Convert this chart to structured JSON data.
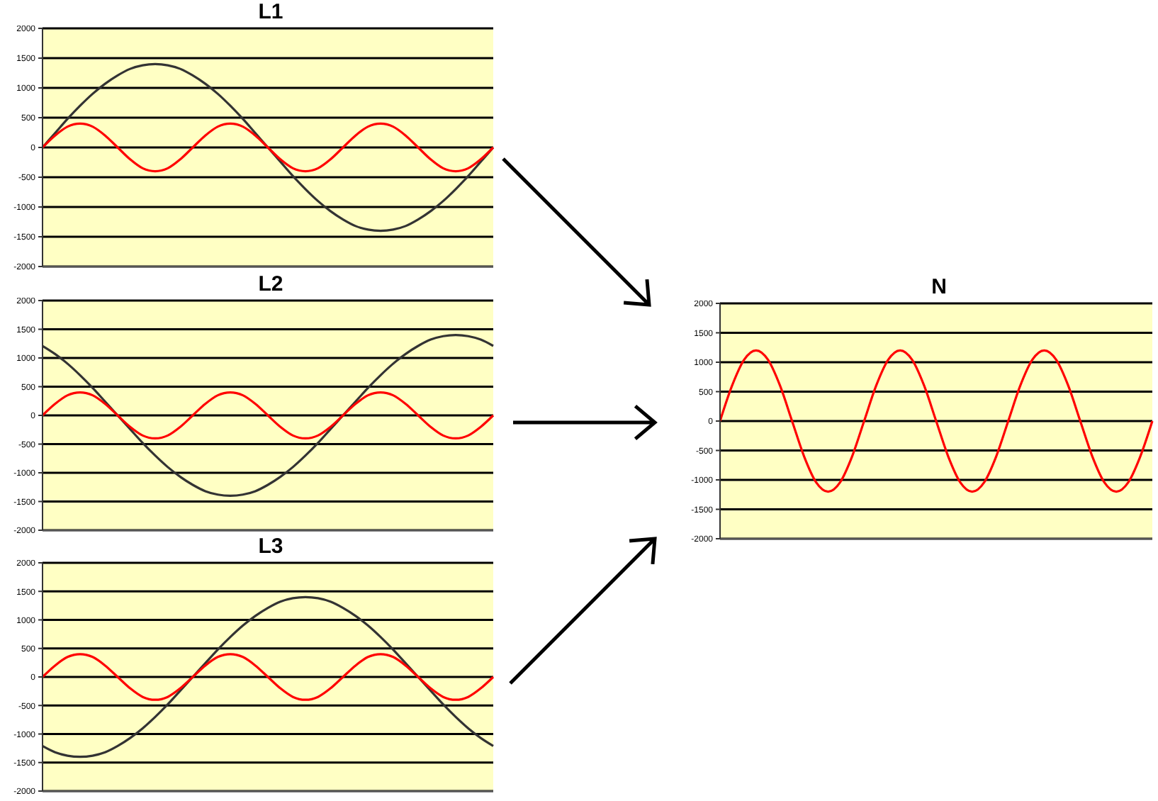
{
  "chart_data": [
    {
      "type": "line",
      "title": "L1",
      "categories": [
        null,
        null,
        null,
        null,
        null,
        null,
        null,
        null,
        null,
        null,
        null,
        null,
        null,
        null,
        null,
        null,
        null,
        null,
        null,
        null,
        null,
        null,
        null,
        null,
        null,
        null,
        null,
        null,
        null,
        null,
        null,
        null,
        null,
        null,
        null,
        null,
        null
      ],
      "series": [
        {
          "color": "#333333",
          "values": [
            0,
            240,
            480,
            700,
            900,
            1070,
            1210,
            1320,
            1380,
            1400,
            1380,
            1320,
            1210,
            1070,
            900,
            700,
            480,
            240,
            0,
            -240,
            -480,
            -700,
            -900,
            -1070,
            -1210,
            -1320,
            -1380,
            -1400,
            -1380,
            -1320,
            -1210,
            -1070,
            -900,
            -700,
            -480,
            -240,
            0
          ]
        },
        {
          "color": "#ff0000",
          "values": [
            0,
            200,
            350,
            400,
            350,
            200,
            0,
            -200,
            -350,
            -400,
            -350,
            -200,
            0,
            200,
            350,
            400,
            350,
            200,
            0,
            -200,
            -350,
            -400,
            -350,
            -200,
            0,
            200,
            350,
            400,
            350,
            200,
            0,
            -200,
            -350,
            -400,
            -350,
            -200,
            0
          ]
        }
      ],
      "ylim": [
        -2000,
        2000
      ],
      "yticks": [
        -2000,
        -1500,
        -1000,
        -500,
        0,
        500,
        1000,
        1500,
        2000
      ],
      "grid": "y",
      "tick_labels": "y"
    },
    {
      "type": "line",
      "title": "L2",
      "categories": [
        null,
        null,
        null,
        null,
        null,
        null,
        null,
        null,
        null,
        null,
        null,
        null,
        null,
        null,
        null,
        null,
        null,
        null,
        null,
        null,
        null,
        null,
        null,
        null,
        null,
        null,
        null,
        null,
        null,
        null,
        null,
        null,
        null,
        null,
        null,
        null,
        null
      ],
      "series": [
        {
          "color": "#333333",
          "values": [
            1210,
            1070,
            900,
            700,
            480,
            240,
            0,
            -240,
            -480,
            -700,
            -900,
            -1070,
            -1210,
            -1320,
            -1380,
            -1400,
            -1380,
            -1320,
            -1210,
            -1070,
            -900,
            -700,
            -480,
            -240,
            0,
            240,
            480,
            700,
            900,
            1070,
            1210,
            1320,
            1380,
            1400,
            1380,
            1320,
            1210
          ]
        },
        {
          "color": "#ff0000",
          "values": [
            0,
            200,
            350,
            400,
            350,
            200,
            0,
            -200,
            -350,
            -400,
            -350,
            -200,
            0,
            200,
            350,
            400,
            350,
            200,
            0,
            -200,
            -350,
            -400,
            -350,
            -200,
            0,
            200,
            350,
            400,
            350,
            200,
            0,
            -200,
            -350,
            -400,
            -350,
            -200,
            0
          ]
        }
      ],
      "ylim": [
        -2000,
        2000
      ],
      "yticks": [
        -2000,
        -1500,
        -1000,
        -500,
        0,
        500,
        1000,
        1500,
        2000
      ],
      "grid": "y",
      "tick_labels": "y"
    },
    {
      "type": "line",
      "title": "L3",
      "categories": [
        null,
        null,
        null,
        null,
        null,
        null,
        null,
        null,
        null,
        null,
        null,
        null,
        null,
        null,
        null,
        null,
        null,
        null,
        null,
        null,
        null,
        null,
        null,
        null,
        null,
        null,
        null,
        null,
        null,
        null,
        null,
        null,
        null,
        null,
        null,
        null,
        null
      ],
      "series": [
        {
          "color": "#333333",
          "values": [
            -1210,
            -1320,
            -1380,
            -1400,
            -1380,
            -1320,
            -1210,
            -1070,
            -900,
            -700,
            -480,
            -240,
            0,
            240,
            480,
            700,
            900,
            1070,
            1210,
            1320,
            1380,
            1400,
            1380,
            1320,
            1210,
            1070,
            900,
            700,
            480,
            240,
            0,
            -240,
            -480,
            -700,
            -900,
            -1070,
            -1210
          ]
        },
        {
          "color": "#ff0000",
          "values": [
            0,
            200,
            350,
            400,
            350,
            200,
            0,
            -200,
            -350,
            -400,
            -350,
            -200,
            0,
            200,
            350,
            400,
            350,
            200,
            0,
            -200,
            -350,
            -400,
            -350,
            -200,
            0,
            200,
            350,
            400,
            350,
            200,
            0,
            -200,
            -350,
            -400,
            -350,
            -200,
            0
          ]
        }
      ],
      "ylim": [
        -2000,
        2000
      ],
      "yticks": [
        -2000,
        -1500,
        -1000,
        -500,
        0,
        500,
        1000,
        1500,
        2000
      ],
      "grid": "y",
      "tick_labels": "y"
    },
    {
      "type": "line",
      "title": "N",
      "categories": [
        null,
        null,
        null,
        null,
        null,
        null,
        null,
        null,
        null,
        null,
        null,
        null,
        null,
        null,
        null,
        null,
        null,
        null,
        null,
        null,
        null,
        null,
        null,
        null,
        null,
        null,
        null,
        null,
        null,
        null,
        null,
        null,
        null,
        null,
        null,
        null,
        null
      ],
      "series": [
        {
          "color": "#ff0000",
          "values": [
            0,
            600,
            1040,
            1200,
            1040,
            600,
            0,
            -600,
            -1040,
            -1200,
            -1040,
            -600,
            0,
            600,
            1040,
            1200,
            1040,
            600,
            0,
            -600,
            -1040,
            -1200,
            -1040,
            -600,
            0,
            600,
            1040,
            1200,
            1040,
            600,
            0,
            -600,
            -1040,
            -1200,
            -1040,
            -600,
            0
          ]
        }
      ],
      "ylim": [
        -2000,
        2000
      ],
      "yticks": [
        -2000,
        -1500,
        -1000,
        -500,
        0,
        500,
        1000,
        1500,
        2000
      ],
      "grid": "y",
      "tick_labels": "y"
    }
  ]
}
